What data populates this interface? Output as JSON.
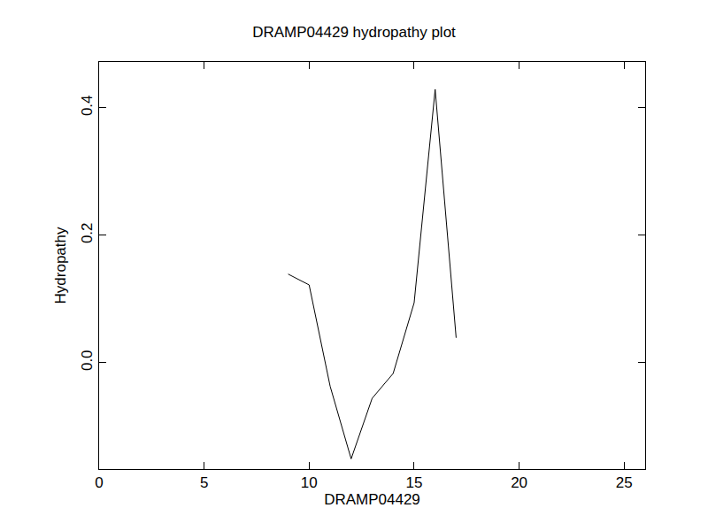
{
  "chart_data": {
    "type": "line",
    "title": "DRAMP04429 hydropathy plot",
    "x_label": "DRAMP04429",
    "y_label": "Hydropathy",
    "x": [
      9,
      10,
      11,
      12,
      13,
      14,
      15,
      16,
      17
    ],
    "values": [
      0.139,
      0.122,
      -0.037,
      -0.151,
      -0.056,
      -0.017,
      0.094,
      0.429,
      0.039
    ],
    "color": "#000000",
    "xlim": [
      0,
      26
    ],
    "xticks": [
      0,
      5,
      10,
      15,
      20,
      25
    ],
    "ylim": [
      -0.167,
      0.472
    ],
    "yticks": [
      {
        "value": 0,
        "label": "0.0"
      },
      {
        "value": 0.2,
        "label": "0.2"
      },
      {
        "value": 0.4,
        "label": "0.4"
      }
    ],
    "grid": false
  }
}
